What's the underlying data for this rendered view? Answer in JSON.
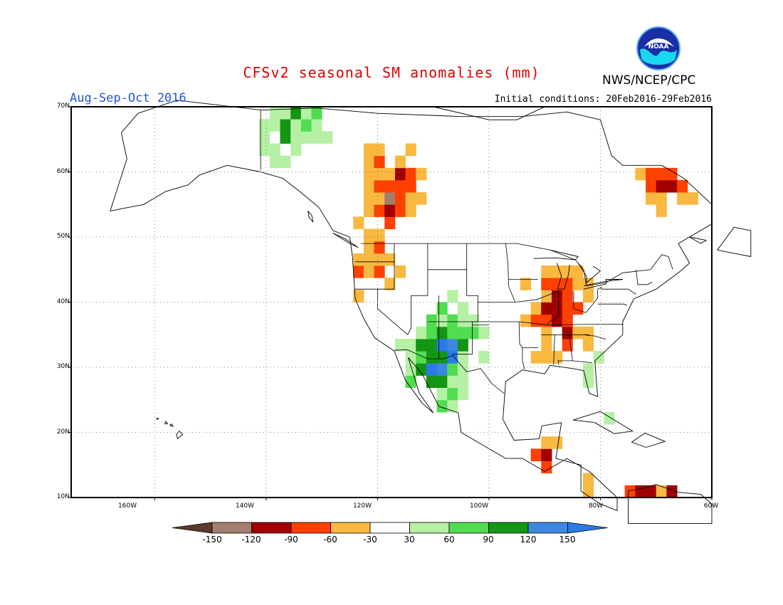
{
  "header": {
    "title": "CFSv2 seasonal SM anomalies (mm)",
    "period": "Aug-Sep-Oct 2016",
    "initial_conditions": "Initial conditions: 20Feb2016-29Feb2016",
    "agency": "NWS/NCEP/CPC",
    "logo_text": "NOAA"
  },
  "map": {
    "region": "North America",
    "lon_range": [
      -175,
      -60
    ],
    "lat_range": [
      10,
      70
    ],
    "lat_labels": [
      "70N",
      "60N",
      "50N",
      "40N",
      "30N",
      "20N",
      "10N"
    ],
    "lon_labels": [
      "160W",
      "140W",
      "120W",
      "100W",
      "80W",
      "60W"
    ],
    "grid": "dotted"
  },
  "colorbar": {
    "labels": [
      "-150",
      "-120",
      "-90",
      "-60",
      "-30",
      "30",
      "60",
      "90",
      "120",
      "150"
    ],
    "colors": [
      "#5b3a29",
      "#a47e6e",
      "#a00000",
      "#ff4000",
      "#f9b840",
      "#ffffff",
      "#b5f0a5",
      "#50dd50",
      "#139613",
      "#3c88e0",
      "#2a7ae8"
    ]
  },
  "chart_data": {
    "type": "heatmap",
    "title": "CFSv2 seasonal SM anomalies (mm)",
    "units": "mm",
    "valid_period": "Aug-Sep-Oct 2016",
    "legend_placement": "bottom",
    "class_breaks": [
      -150,
      -120,
      -90,
      -60,
      -30,
      30,
      60,
      90,
      120,
      150
    ],
    "anomaly_regions": [
      {
        "region": "Western Canada (Alberta)",
        "lon": -117,
        "lat": 58,
        "anomaly_mm": -100
      },
      {
        "region": "US Midwest / Ohio Valley",
        "lon": -88,
        "lat": 40,
        "anomaly_mm": -75
      },
      {
        "region": "Southeast US",
        "lon": -85,
        "lat": 33,
        "anomaly_mm": -45
      },
      {
        "region": "Southwest US / New Mexico",
        "lon": -108,
        "lat": 34,
        "anomaly_mm": 110
      },
      {
        "region": "Northwest Mexico",
        "lon": -110,
        "lat": 28,
        "anomaly_mm": 75
      },
      {
        "region": "Central America",
        "lon": -88,
        "lat": 14,
        "anomaly_mm": -110
      },
      {
        "region": "Northern Alaska / Yukon",
        "lon": -135,
        "lat": 68,
        "anomaly_mm": 90
      },
      {
        "region": "Florida",
        "lon": -81,
        "lat": 28,
        "anomaly_mm": 90
      },
      {
        "region": "Pacific Northwest",
        "lon": -121,
        "lat": 46,
        "anomaly_mm": -40
      },
      {
        "region": "Labrador / Quebec",
        "lon": -68,
        "lat": 58,
        "anomaly_mm": -70
      },
      {
        "region": "Northern Venezuela",
        "lon": -70,
        "lat": 10.5,
        "anomaly_mm": -90
      }
    ]
  }
}
